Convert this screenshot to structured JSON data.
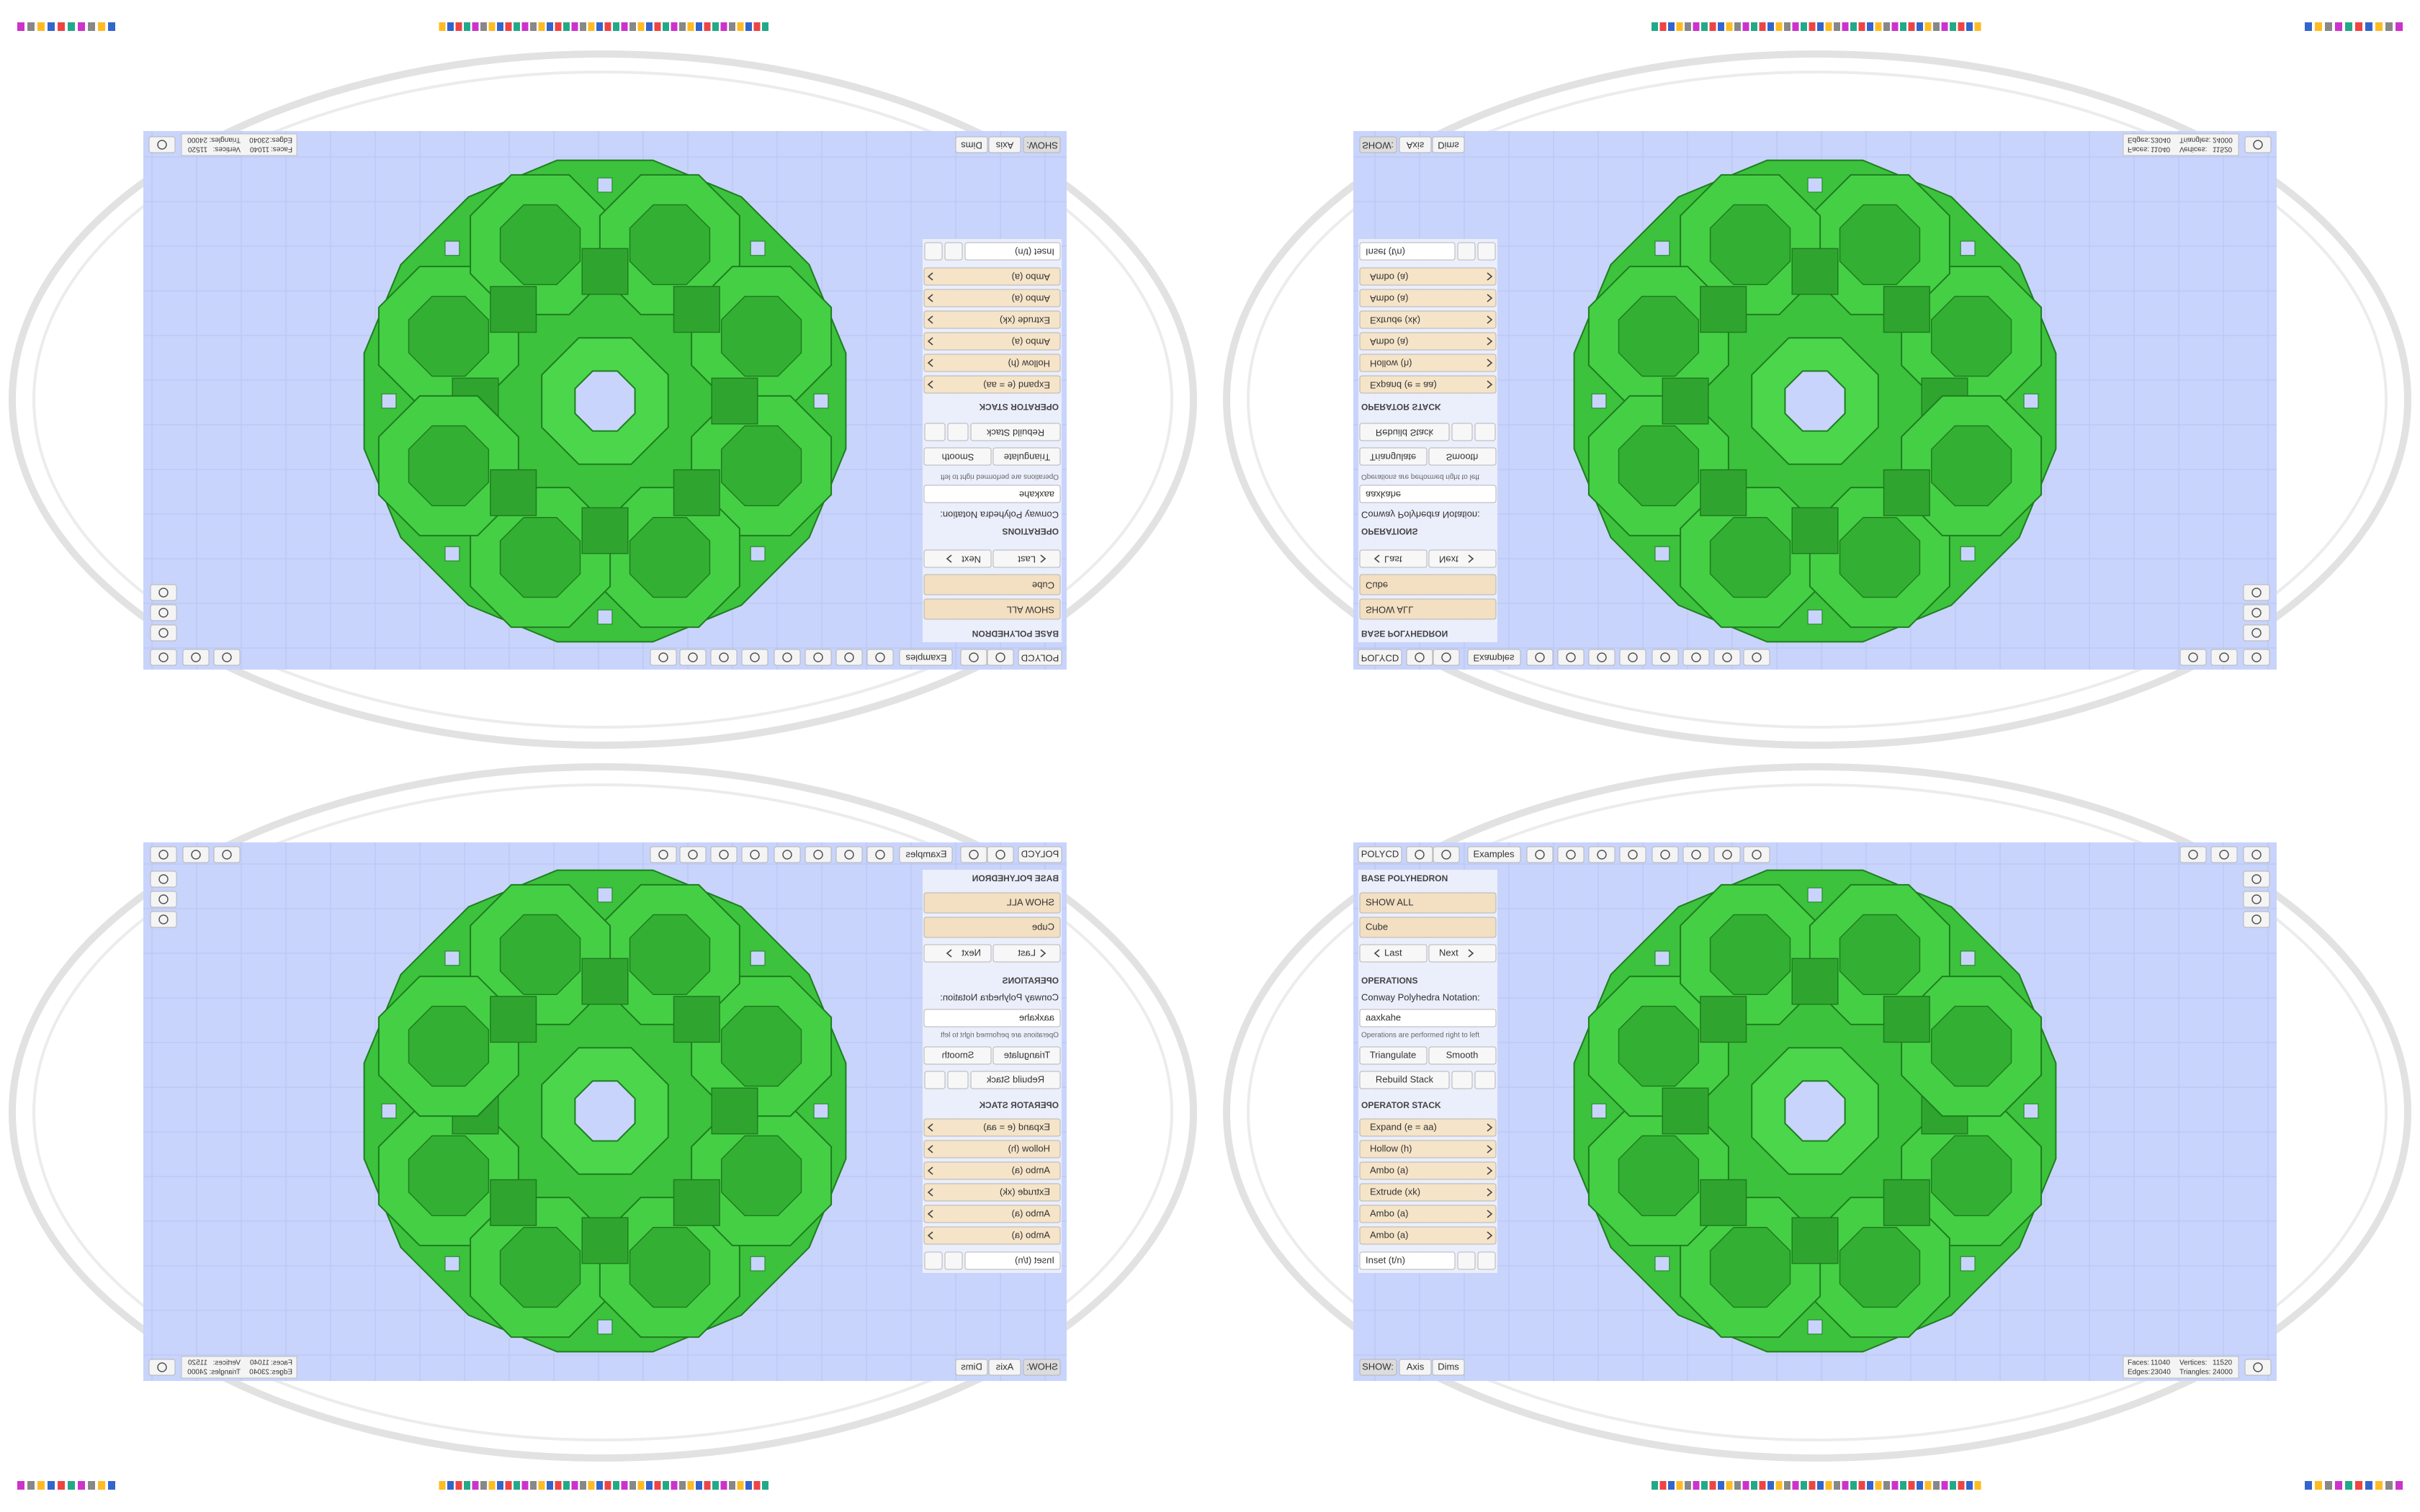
{
  "app": {
    "title": "POLYCD",
    "examples": "Examples"
  },
  "panel": {
    "base_header": "BASE POLYHEDRON",
    "show_all": "SHOW ALL",
    "base": "Cube",
    "last": "Last",
    "next": "Next",
    "ops_header": "OPERATIONS",
    "notation_label": "Conway Polyhedra Notation:",
    "notation": "aaxkahe",
    "hint": "Operations are performed right to left",
    "triangulate": "Triangulate",
    "smooth": "Smooth",
    "rebuild": "Rebuild Stack",
    "stack_header": "OPERATOR STACK",
    "stack": [
      "Expand (e = aa)",
      "Hollow (h)",
      "Ambo (a)",
      "Extrude (xk)",
      "Ambo (a)",
      "Ambo (a)"
    ],
    "add_op": "Inset (t/n)"
  },
  "view": {
    "show": "SHOW:",
    "axis": "Axis",
    "dims": "Dims"
  },
  "stats": {
    "faces_label": "Faces:",
    "faces": 11040,
    "vertices_label": "Vertices:",
    "vertices": 11520,
    "edges_label": "Edges:",
    "edges": 23040,
    "triangles_label": "Triangles:",
    "triangles": 24000
  }
}
